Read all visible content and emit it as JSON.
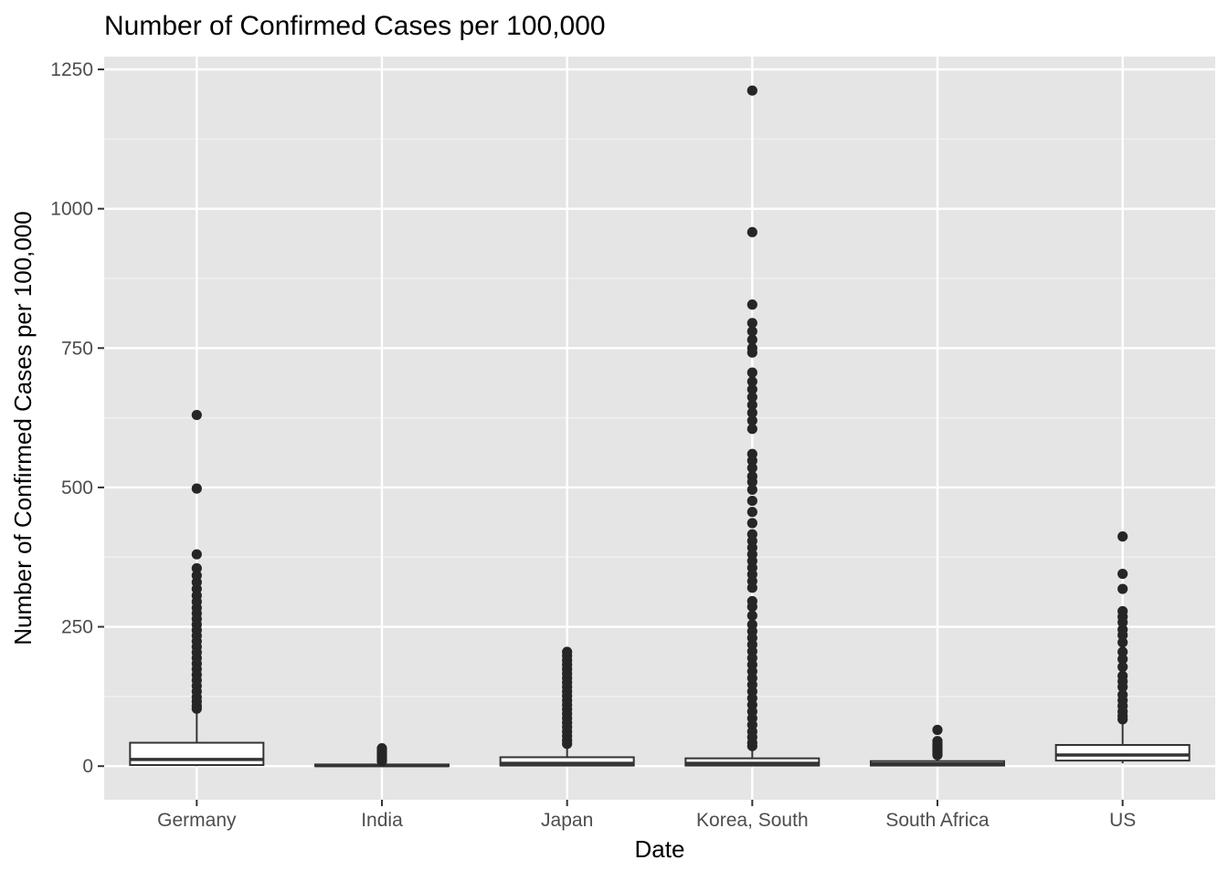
{
  "chart_data": {
    "type": "boxplot",
    "title": "Number of Confirmed Cases per 100,000",
    "xlabel": "Date",
    "ylabel": "Number of Confirmed Cases per 100,000",
    "ylim": [
      -60,
      1300
    ],
    "yticks": [
      0,
      250,
      500,
      750,
      1000,
      1250
    ],
    "grid": true,
    "categories": [
      "Germany",
      "India",
      "Japan",
      "Korea, South",
      "South Africa",
      "US"
    ],
    "boxes": [
      {
        "name": "Germany",
        "min": 0,
        "q1": 2,
        "median": 12,
        "q3": 42,
        "whisker_high": 100,
        "outliers": [
          630,
          498,
          380,
          355,
          342,
          330,
          318,
          306,
          295,
          284,
          274,
          264,
          254,
          244,
          234,
          224,
          214,
          204,
          194,
          184,
          174,
          164,
          154,
          144,
          134,
          124,
          116,
          108,
          103
        ]
      },
      {
        "name": "India",
        "min": 0,
        "q1": 0,
        "median": 1,
        "q3": 3,
        "whisker_high": 7,
        "outliers": [
          32,
          28,
          24,
          20,
          16,
          12,
          9
        ]
      },
      {
        "name": "Japan",
        "min": 0,
        "q1": 1,
        "median": 5,
        "q3": 16,
        "whisker_high": 35,
        "outliers": [
          205,
          198,
          190,
          182,
          174,
          166,
          158,
          150,
          142,
          134,
          126,
          118,
          110,
          102,
          94,
          86,
          78,
          70,
          62,
          54,
          46,
          40
        ]
      },
      {
        "name": "Korea, South",
        "min": 0,
        "q1": 1,
        "median": 5,
        "q3": 14,
        "whisker_high": 30,
        "outliers": [
          1212,
          958,
          828,
          795,
          780,
          765,
          750,
          742,
          706,
          690,
          676,
          662,
          648,
          634,
          620,
          605,
          560,
          548,
          535,
          520,
          510,
          496,
          476,
          456,
          436,
          416,
          404,
          392,
          380,
          368,
          356,
          344,
          332,
          320,
          296,
          286,
          270,
          254,
          242,
          230,
          218,
          206,
          194,
          182,
          170,
          158,
          146,
          134,
          122,
          110,
          98,
          86,
          74,
          62,
          52,
          42,
          36
        ]
      },
      {
        "name": "South Africa",
        "min": 0,
        "q1": 1,
        "median": 4,
        "q3": 9,
        "whisker_high": 16,
        "outliers": [
          65,
          45,
          40,
          36,
          32,
          28,
          24,
          20
        ]
      },
      {
        "name": "US",
        "min": 5,
        "q1": 10,
        "median": 20,
        "q3": 38,
        "whisker_high": 80,
        "outliers": [
          412,
          345,
          318,
          278,
          268,
          258,
          245,
          235,
          222,
          205,
          192,
          178,
          162,
          152,
          142,
          128,
          118,
          108,
          98,
          90,
          84
        ]
      }
    ]
  }
}
